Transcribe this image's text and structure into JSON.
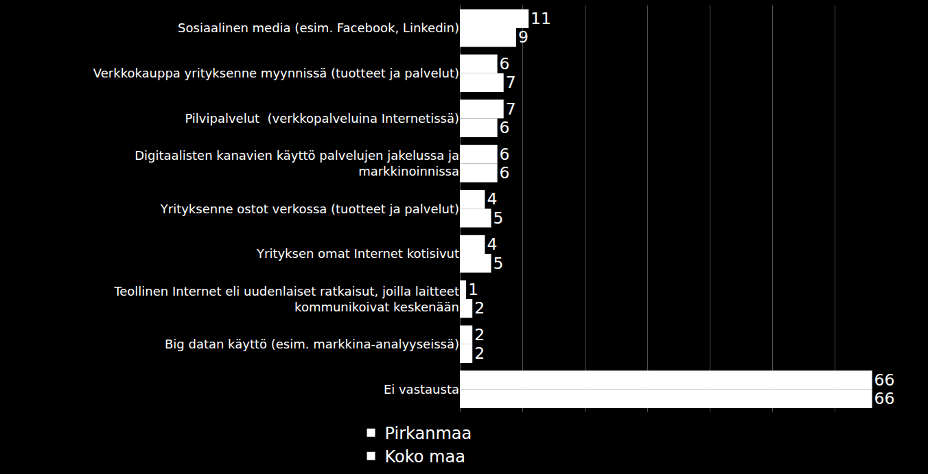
{
  "chart_data": {
    "type": "bar",
    "orientation": "horizontal",
    "categories": [
      "Sosiaalinen media (esim. Facebook, Linkedin)",
      "Verkkokauppa yrityksenne myynnissä (tuotteet ja palvelut)",
      "Pilvipalvelut  (verkkopalveluina Internetissä)",
      "Digitaalisten kanavien käyttö palvelujen jakelussa ja\nmarkkinoinnissa",
      "Yrityksenne ostot verkossa (tuotteet ja palvelut)",
      "Yrityksen omat Internet kotisivut",
      "Teollinen Internet eli uudenlaiset ratkaisut, joilla laitteet\nkommunikoivat keskenään",
      "Big datan käyttö (esim. markkina-analyyseissä)",
      "Ei vastausta"
    ],
    "series": [
      {
        "name": "Pirkanmaa",
        "color": "#ffffff",
        "values": [
          11,
          6,
          7,
          6,
          4,
          4,
          1,
          2,
          66
        ]
      },
      {
        "name": "Koko maa",
        "color": "#ffffff",
        "values": [
          9,
          7,
          6,
          6,
          5,
          5,
          2,
          2,
          66
        ]
      }
    ],
    "xlim": [
      0,
      70
    ],
    "xticks": [
      0,
      10,
      20,
      30,
      40,
      50,
      60,
      70
    ],
    "grid": true,
    "legend": "bottom",
    "data_labels": true,
    "tick_labels": "y"
  }
}
